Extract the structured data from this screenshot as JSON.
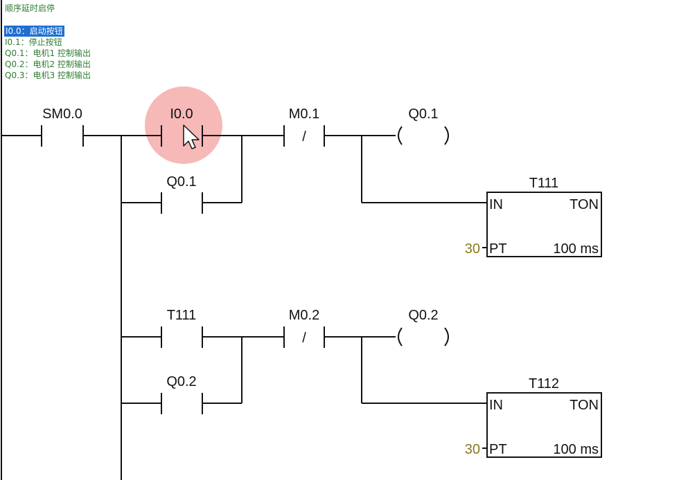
{
  "network": {
    "title": "顺序延时启停",
    "comments": [
      "I0.0：启动按钮",
      "I0.1：停止按钮",
      "Q0.1：电机1 控制输出",
      "Q0.2：电机2 控制输出",
      "Q0.3：电机3 控制输出"
    ]
  },
  "ladder": {
    "contacts": {
      "sm00": "SM0.0",
      "i00": "I0.0",
      "q01_hold": "Q0.1",
      "m01": "M0.1",
      "t111_contact": "T111",
      "q02_hold": "Q0.2",
      "m02": "M0.2"
    },
    "negation_mark": "/",
    "coils": {
      "q01": "Q0.1",
      "q02": "Q0.2"
    },
    "timers": [
      {
        "name": "T111",
        "type": "TON",
        "in_label": "IN",
        "pt_label": "PT",
        "pt_value": "30",
        "resolution": "100 ms"
      },
      {
        "name": "T112",
        "type": "TON",
        "in_label": "IN",
        "pt_label": "PT",
        "pt_value": "30",
        "resolution": "100 ms"
      }
    ]
  },
  "colors": {
    "comment_text": "#2e7d32",
    "selection_bg": "#1e6fd0",
    "cursor_highlight": "#f4a0a0",
    "wire": "#111111",
    "pt_value": "#8a7a1a"
  }
}
